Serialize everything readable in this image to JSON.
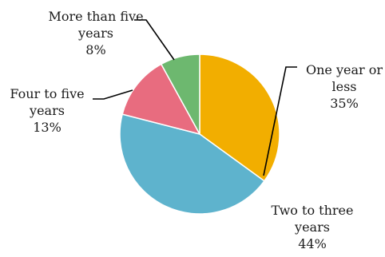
{
  "chart_data": {
    "type": "pie",
    "title": "",
    "slices": [
      {
        "category_lines": [
          "One year or",
          "less"
        ],
        "value_label": "35%",
        "value": 35,
        "color": "#F2AE00"
      },
      {
        "category_lines": [
          "Two to three",
          "years"
        ],
        "value_label": "44%",
        "value": 44,
        "color": "#5EB3CD"
      },
      {
        "category_lines": [
          "Four to five",
          "years"
        ],
        "value_label": "13%",
        "value": 13,
        "color": "#E86C7F"
      },
      {
        "category_lines": [
          "More than five",
          "years"
        ],
        "value_label": "8%",
        "value": 8,
        "color": "#6DB86F"
      }
    ],
    "start_angle_deg": 0,
    "direction": "clockwise",
    "legend": "none",
    "data_labels": "outside with leader lines"
  }
}
